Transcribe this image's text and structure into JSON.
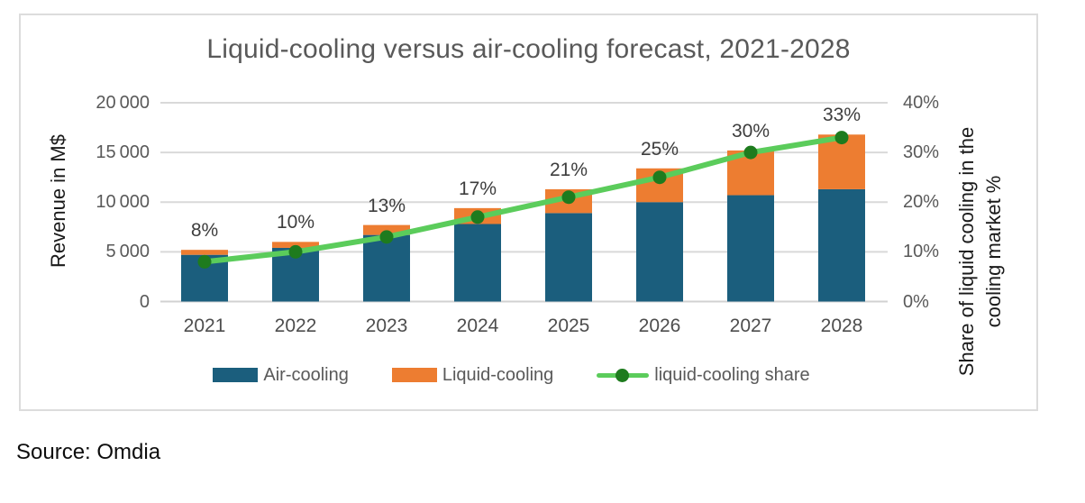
{
  "title": "Liquid-cooling versus air-cooling forecast, 2021-2028",
  "source_note": "Source: Omdia",
  "left_axis": {
    "title": "Revenue in M$",
    "tick_labels": [
      "0",
      "5 000",
      "10 000",
      "15 000",
      "20 000"
    ],
    "tick_values": [
      0,
      5000,
      10000,
      15000,
      20000
    ]
  },
  "right_axis": {
    "title_line1": "Share of liquid cooling in the",
    "title_line2": "cooling market %",
    "tick_labels": [
      "0%",
      "10%",
      "20%",
      "30%",
      "40%"
    ],
    "tick_values": [
      0,
      10,
      20,
      30,
      40
    ]
  },
  "legend": {
    "items": [
      {
        "label": "Air-cooling",
        "swatch": "bar",
        "color": "#1B5E7D"
      },
      {
        "label": "Liquid-cooling",
        "swatch": "bar",
        "color": "#ED7D31"
      },
      {
        "label": "liquid-cooling share",
        "swatch": "line-marker",
        "color": "#5BCC5B",
        "marker_color": "#1E7B1E"
      }
    ]
  },
  "colors": {
    "air_bar": "#1B5E7D",
    "liquid_bar": "#ED7D31",
    "share_line": "#5BCC5B",
    "share_marker": "#1E7B1E",
    "gridline": "#D9D9D9",
    "zero_line": "#D2D2D2",
    "frame_border": "#DCDCDC",
    "title_text": "#595959",
    "tick_text": "#595959",
    "data_label_text": "#3D3D3D"
  },
  "chart_data": {
    "type": "bar",
    "variant": "stacked-bars-with-percent-line",
    "title": "Liquid-cooling versus air-cooling forecast, 2021-2028",
    "categories": [
      "2021",
      "2022",
      "2023",
      "2024",
      "2025",
      "2026",
      "2027",
      "2028"
    ],
    "series": [
      {
        "name": "Air-cooling",
        "type": "bar",
        "stack": true,
        "axis": "left",
        "color": "#1B5E7D",
        "values": [
          4700,
          5400,
          6700,
          7800,
          8900,
          10000,
          10700,
          11300
        ]
      },
      {
        "name": "Liquid-cooling",
        "type": "bar",
        "stack": true,
        "axis": "left",
        "color": "#ED7D31",
        "values": [
          500,
          600,
          1000,
          1600,
          2400,
          3400,
          4500,
          5500
        ]
      },
      {
        "name": "liquid-cooling share",
        "type": "line",
        "axis": "right",
        "color": "#5BCC5B",
        "marker_color": "#1E7B1E",
        "values": [
          8,
          10,
          13,
          17,
          21,
          25,
          30,
          33
        ],
        "labels": [
          "8%",
          "10%",
          "13%",
          "17%",
          "21%",
          "25%",
          "30%",
          "33%"
        ]
      }
    ],
    "xlabel": "",
    "ylabel": "Revenue in M$",
    "ylabel_right": "Share of liquid cooling in the cooling market %",
    "ylim_left": [
      0,
      20000
    ],
    "ylim_right": [
      0,
      40
    ],
    "grid": "horizontal",
    "legend_position": "bottom",
    "annotations": "percent data labels above each stacked bar"
  }
}
